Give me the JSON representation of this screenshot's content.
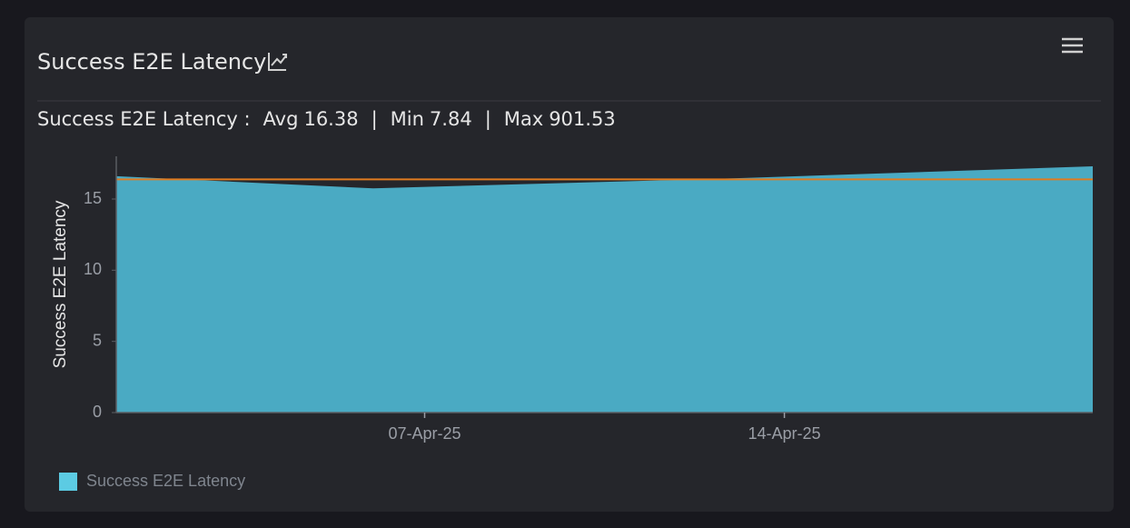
{
  "chart_data": {
    "type": "area",
    "title": "Success E2E Latency",
    "stats_label": "Success E2E Latency :",
    "stats_separator": "|",
    "stats": [
      {
        "label": "Avg",
        "value": 16.38
      },
      {
        "label": "Min",
        "value": 7.84
      },
      {
        "label": "Max",
        "value": 901.53
      }
    ],
    "x": [
      "01-Apr-25",
      "06-Apr-25",
      "13-Apr-25",
      "20-Apr-25"
    ],
    "series": [
      {
        "name": "Success E2E Latency",
        "color": "#4aaac3",
        "legend_color": "#5ccbe3",
        "values": [
          16.6,
          15.75,
          16.45,
          17.3
        ]
      }
    ],
    "average_line_color": "#e07b20",
    "y_label": "Success E2E Latency",
    "xlim": [
      "01-Apr-25",
      "20-Apr-25"
    ],
    "xticks": [
      "07-Apr-25",
      "14-Apr-25"
    ],
    "ylim": [
      0,
      18
    ],
    "yticks": [
      0,
      5,
      10,
      15
    ]
  }
}
